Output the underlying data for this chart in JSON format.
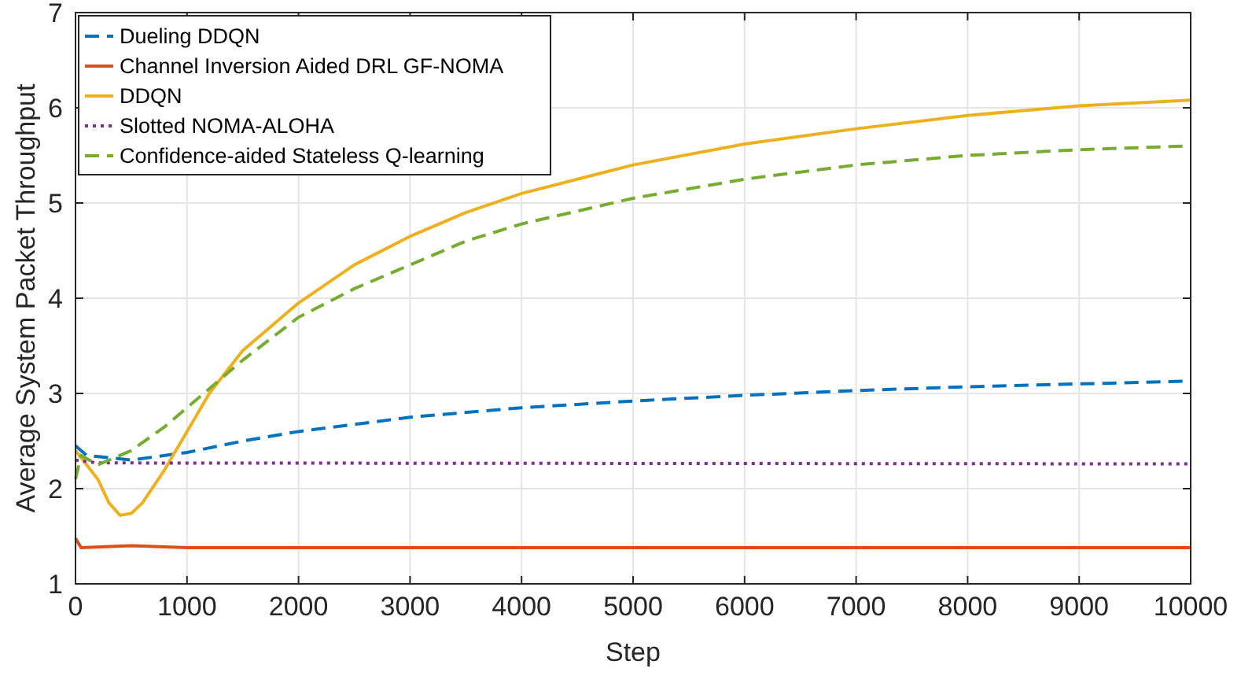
{
  "chart_data": {
    "type": "line",
    "xlabel": "Step",
    "ylabel": "Average System Packet Throughput",
    "xlim": [
      0,
      10000
    ],
    "ylim": [
      1,
      7
    ],
    "xticks": [
      0,
      1000,
      2000,
      3000,
      4000,
      5000,
      6000,
      7000,
      8000,
      9000,
      10000
    ],
    "yticks": [
      1,
      2,
      3,
      4,
      5,
      6,
      7
    ],
    "grid": true,
    "legend": "top left",
    "series": [
      {
        "name": "Dueling DDQN",
        "color": "#0072bd",
        "line_style": "dashed",
        "x": [
          0,
          100,
          500,
          1000,
          1500,
          2000,
          3000,
          4000,
          5000,
          6000,
          7000,
          8000,
          9000,
          10000
        ],
        "values": [
          2.45,
          2.35,
          2.3,
          2.38,
          2.5,
          2.6,
          2.75,
          2.85,
          2.92,
          2.98,
          3.03,
          3.07,
          3.1,
          3.13
        ]
      },
      {
        "name": "Channel Inversion Aided DRL GF-NOMA",
        "color": "#d95319",
        "line_style": "solid",
        "x": [
          0,
          50,
          500,
          1000,
          10000
        ],
        "values": [
          1.48,
          1.38,
          1.4,
          1.38,
          1.38
        ]
      },
      {
        "name": "DDQN",
        "color": "#edb120",
        "line_style": "solid",
        "x": [
          0,
          100,
          200,
          300,
          400,
          500,
          600,
          800,
          1000,
          1200,
          1500,
          2000,
          2500,
          3000,
          3500,
          4000,
          5000,
          6000,
          7000,
          8000,
          9000,
          10000
        ],
        "values": [
          2.4,
          2.25,
          2.1,
          1.85,
          1.72,
          1.74,
          1.85,
          2.2,
          2.6,
          3.0,
          3.45,
          3.95,
          4.35,
          4.65,
          4.9,
          5.1,
          5.4,
          5.62,
          5.78,
          5.92,
          6.02,
          6.08
        ]
      },
      {
        "name": "Slotted NOMA-ALOHA",
        "color": "#7e2f8e",
        "line_style": "dotted",
        "x": [
          0,
          200,
          10000
        ],
        "values": [
          2.3,
          2.27,
          2.26
        ]
      },
      {
        "name": "Confidence-aided Stateless Q-learning",
        "color": "#77ac30",
        "line_style": "dashed",
        "x": [
          0,
          50,
          200,
          500,
          800,
          1000,
          1500,
          2000,
          2500,
          3000,
          3500,
          4000,
          5000,
          6000,
          7000,
          8000,
          9000,
          10000
        ],
        "values": [
          2.1,
          2.35,
          2.25,
          2.4,
          2.65,
          2.85,
          3.35,
          3.8,
          4.1,
          4.35,
          4.6,
          4.78,
          5.05,
          5.25,
          5.4,
          5.5,
          5.56,
          5.6
        ]
      }
    ]
  }
}
